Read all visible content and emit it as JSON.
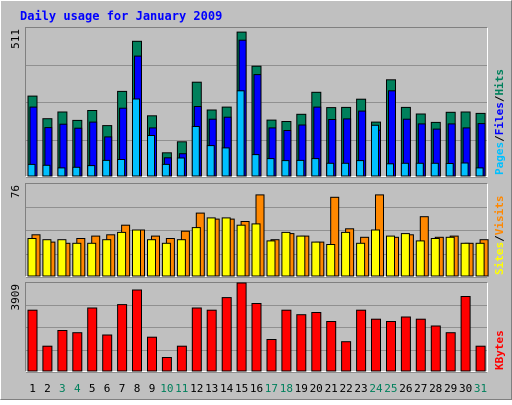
{
  "chart_data": {
    "type": "bar",
    "title": "Daily usage for January 2009",
    "categories": [
      "1",
      "2",
      "3",
      "4",
      "5",
      "6",
      "7",
      "8",
      "9",
      "10",
      "11",
      "12",
      "13",
      "14",
      "15",
      "16",
      "17",
      "18",
      "19",
      "20",
      "21",
      "22",
      "23",
      "24",
      "25",
      "26",
      "27",
      "28",
      "29",
      "30",
      "31"
    ],
    "weekend_days": [
      "3",
      "4",
      "10",
      "11",
      "17",
      "18",
      "24",
      "25",
      "31"
    ],
    "panels": [
      {
        "id": "hits",
        "ymax_label": "511",
        "ylim": [
          0,
          511
        ],
        "series": [
          {
            "name": "Hits",
            "color": "#00805c",
            "values": [
              276,
              198,
              221,
              192,
              226,
              174,
              292,
              465,
              208,
              80,
              118,
              324,
              228,
              238,
              497,
              379,
              193,
              188,
              213,
              289,
              236,
              237,
              265,
              186,
              332,
              237,
              214,
              185,
              220,
              221,
              216
            ]
          },
          {
            "name": "Files",
            "color": "#0000ff",
            "values": [
              238,
              167,
              179,
              165,
              186,
              135,
              234,
              414,
              166,
              63,
              77,
              240,
              196,
              203,
              469,
              350,
              166,
              157,
              176,
              238,
              195,
              197,
              224,
              158,
              294,
              196,
              180,
              162,
              180,
              166,
              181
            ]
          },
          {
            "name": "Pages",
            "color": "#00c0ff",
            "values": [
              40,
              37,
              28,
              30,
              36,
              54,
              57,
              266,
              140,
              40,
              62,
              171,
              105,
              97,
              294,
              74,
              60,
              53,
              54,
              60,
              44,
              44,
              53,
              175,
              42,
              44,
              44,
              44,
              43,
              45,
              28
            ]
          }
        ],
        "legend": [
          "Pages",
          "Files",
          "Hits"
        ]
      },
      {
        "id": "visits",
        "ymax_label": "76",
        "ylim": [
          0,
          76
        ],
        "series": [
          {
            "name": "Visits",
            "color": "#ff8800",
            "values": [
              34,
              28,
              27,
              31,
              33,
              34,
              42,
              38,
              33,
              31,
              37,
              52,
              47,
              47,
              45,
              67,
              30,
              35,
              33,
              28,
              65,
              39,
              32,
              67,
              32,
              34,
              49,
              32,
              33,
              27,
              30
            ]
          },
          {
            "name": "Sites",
            "color": "#ffff00",
            "values": [
              31,
              30,
              30,
              27,
              27,
              30,
              36,
              38,
              30,
              27,
              30,
              40,
              48,
              48,
              42,
              43,
              29,
              36,
              33,
              28,
              26,
              36,
              27,
              38,
              33,
              35,
              29,
              31,
              32,
              27,
              27
            ]
          }
        ],
        "legend": [
          "Sites",
          "Visits"
        ]
      },
      {
        "id": "kbytes",
        "ymax_label": "3909",
        "ylim": [
          0,
          3909
        ],
        "series": [
          {
            "name": "KBytes",
            "color": "#ff0000",
            "values": [
              2700,
              1100,
              1800,
              1700,
              2800,
              1600,
              2950,
              3600,
              1500,
              600,
              1100,
              2800,
              2700,
              3260,
              3909,
              3000,
              1400,
              2700,
              2500,
              2600,
              2200,
              1300,
              2700,
              2300,
              2200,
              2400,
              2300,
              2000,
              1700,
              3310,
              1100
            ]
          }
        ],
        "legend": [
          "KBytes"
        ]
      }
    ],
    "legend_placement": "right",
    "grid": true
  }
}
